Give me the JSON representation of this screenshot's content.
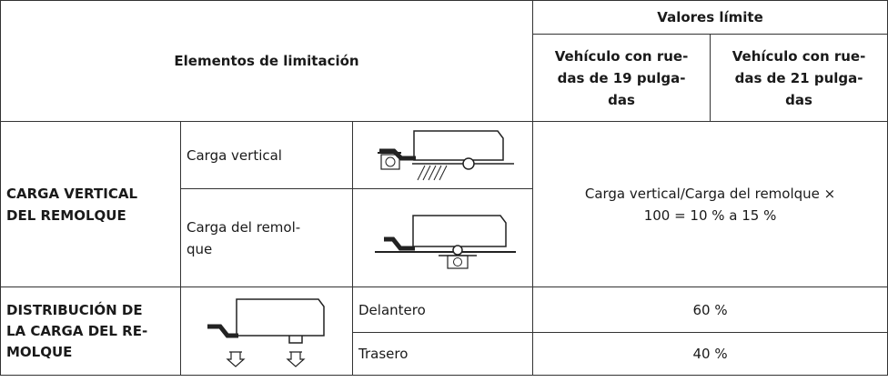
{
  "table": {
    "header": {
      "group": "Elementos de limitación",
      "limits": "Valores límite",
      "col19": [
        "Vehículo con rue-",
        "das de 19 pulga-",
        "das"
      ],
      "col21": [
        "Vehículo con rue-",
        "das de 21 pulga-",
        "das"
      ]
    },
    "rows": [
      {
        "section": [
          "CARGA VERTICAL",
          "DEL REMOLQUE"
        ],
        "items": [
          {
            "label": [
              "Carga vertical"
            ]
          },
          {
            "label": [
              "Carga del remol-",
              "que"
            ]
          }
        ],
        "value": [
          "Carga vertical/Carga del remolque ×",
          "100 = 10 % a 15 %"
        ]
      },
      {
        "section": [
          "DISTRIBUCIÓN DE",
          "LA CARGA DEL RE-",
          "MOLQUE"
        ],
        "items": [
          {
            "label": [
              "Delantero"
            ],
            "value": "60 %"
          },
          {
            "label": [
              "Trasero"
            ],
            "value": "40 %"
          }
        ]
      }
    ]
  }
}
